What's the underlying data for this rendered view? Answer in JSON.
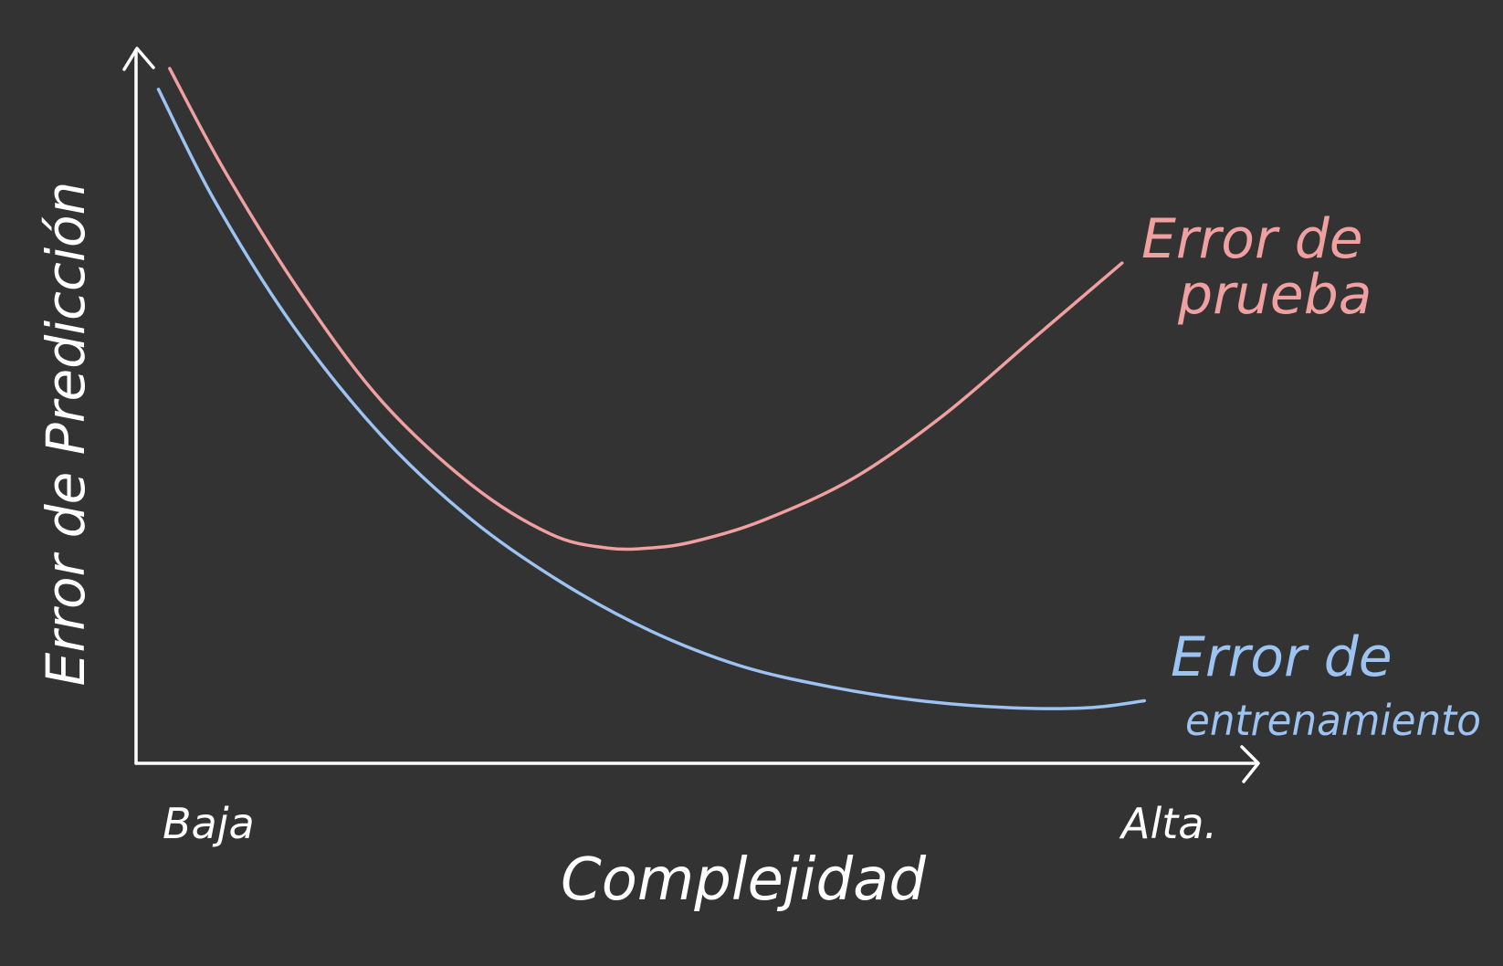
{
  "colors": {
    "background": "#333333",
    "axis": "#ffffff",
    "test": "#f0a0a0",
    "train": "#9cc3f2"
  },
  "chart_data": {
    "type": "line",
    "title": "",
    "xlabel": "Complejidad",
    "ylabel": "Error de Predicción",
    "x_tick_labels": [
      "Baja",
      "Alta."
    ],
    "xlim": [
      0,
      1
    ],
    "ylim": [
      0,
      1
    ],
    "grid": false,
    "series": [
      {
        "name": "Error de prueba",
        "label_lines": [
          "Error de",
          "prueba"
        ],
        "color": "#f0a0a0",
        "x": [
          0.03,
          0.08,
          0.15,
          0.22,
          0.3,
          0.37,
          0.42,
          0.46,
          0.5,
          0.56,
          0.64,
          0.72,
          0.8,
          0.88
        ],
        "y": [
          1.0,
          0.85,
          0.67,
          0.52,
          0.4,
          0.33,
          0.31,
          0.31,
          0.32,
          0.35,
          0.41,
          0.5,
          0.61,
          0.72
        ]
      },
      {
        "name": "Error de entrenamiento",
        "label_lines": [
          "Error de",
          "entrenamiento"
        ],
        "color": "#9cc3f2",
        "x": [
          0.02,
          0.07,
          0.14,
          0.22,
          0.3,
          0.38,
          0.46,
          0.54,
          0.62,
          0.7,
          0.78,
          0.85,
          0.9
        ],
        "y": [
          0.97,
          0.81,
          0.63,
          0.47,
          0.35,
          0.26,
          0.19,
          0.14,
          0.11,
          0.09,
          0.08,
          0.08,
          0.09
        ]
      }
    ]
  }
}
